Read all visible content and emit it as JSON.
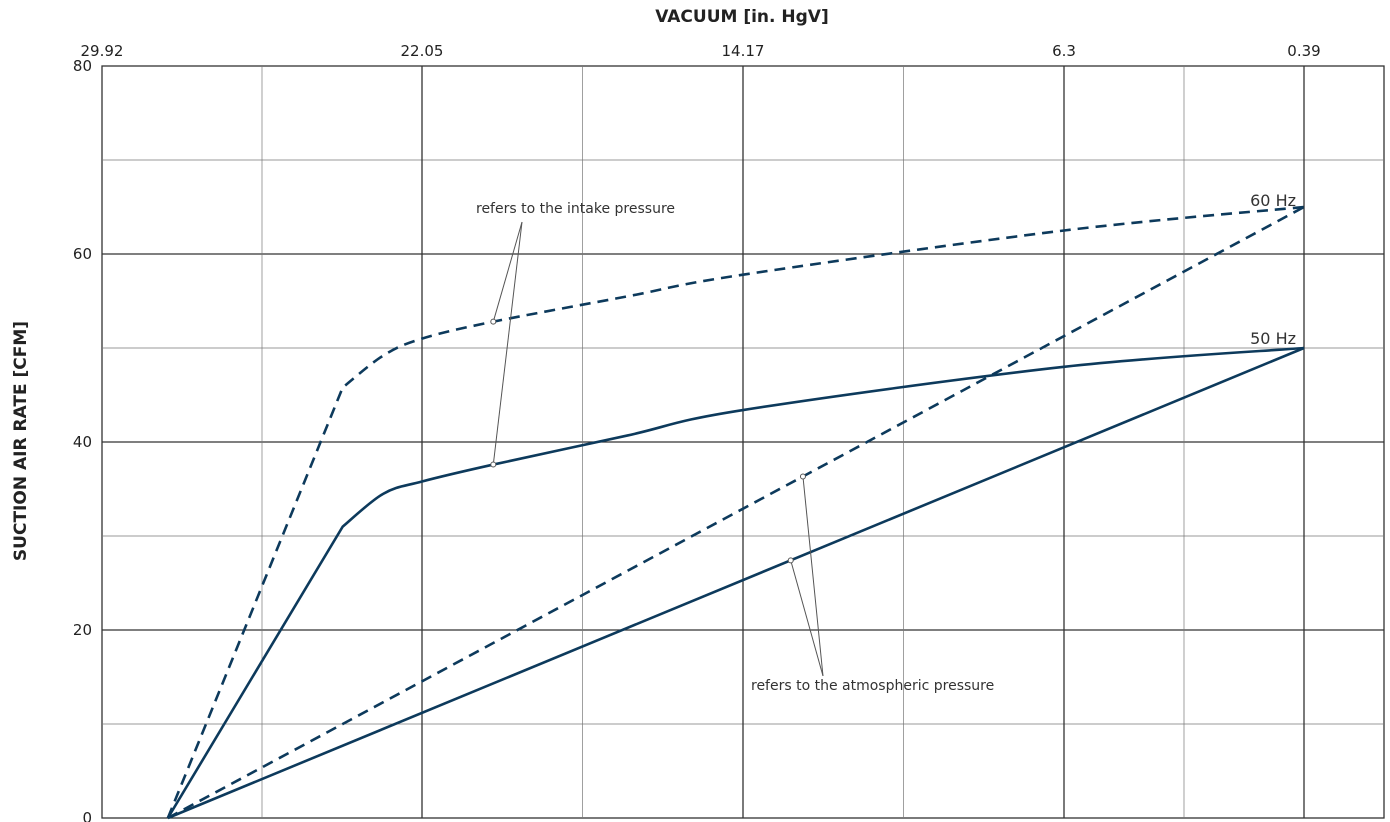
{
  "chart_data": {
    "type": "line",
    "title": "",
    "xlabel": "VACUUM  [in. HgV]",
    "ylabel": "SUCTION AIR RATE  [CFM]",
    "x_axis_position": "top",
    "x_ticks": [
      29.92,
      22.05,
      14.17,
      6.3,
      0.39
    ],
    "x_tick_labels": [
      "29.92",
      "22.05",
      "14.17",
      "6.3",
      "0.39"
    ],
    "xlim": [
      29.92,
      0.39
    ],
    "x_data_start": 28.3,
    "y_ticks": [
      0,
      20,
      40,
      60,
      80
    ],
    "y_tick_labels": [
      "0",
      "20",
      "40",
      "60",
      "80"
    ],
    "ylim": [
      0,
      80
    ],
    "grid": true,
    "series": [
      {
        "name": "60 Hz",
        "pressure_reference": "intake",
        "style": "dashed",
        "x": [
          28.3,
          24.0,
          23.0,
          22.05,
          20.3,
          17.0,
          14.17,
          6.3,
          0.39
        ],
        "y": [
          0,
          45.8,
          49.2,
          51.0,
          52.8,
          55.5,
          57.8,
          62.5,
          65.0
        ]
      },
      {
        "name": "50 Hz",
        "pressure_reference": "intake",
        "style": "solid",
        "x": [
          28.3,
          24.0,
          23.0,
          22.05,
          20.3,
          17.0,
          14.17,
          6.3,
          0.39
        ],
        "y": [
          0,
          31.0,
          34.5,
          35.8,
          37.6,
          40.7,
          43.4,
          48.0,
          50.0
        ]
      },
      {
        "name": "60 Hz",
        "pressure_reference": "atmospheric",
        "style": "dashed",
        "x": [
          28.3,
          0.39
        ],
        "y": [
          0,
          65.0
        ]
      },
      {
        "name": "50 Hz",
        "pressure_reference": "atmospheric",
        "style": "solid",
        "x": [
          28.3,
          0.39
        ],
        "y": [
          0,
          50.0
        ]
      }
    ],
    "series_labels": [
      "60 Hz",
      "50 Hz"
    ],
    "annotations": {
      "intake": "refers to the intake pressure",
      "atmospheric": "refers to the atmospheric pressure"
    },
    "colors": {
      "line": "#0d3a5c",
      "grid_major": "#333333",
      "grid_minor": "#777777",
      "leader": "#555555"
    }
  }
}
